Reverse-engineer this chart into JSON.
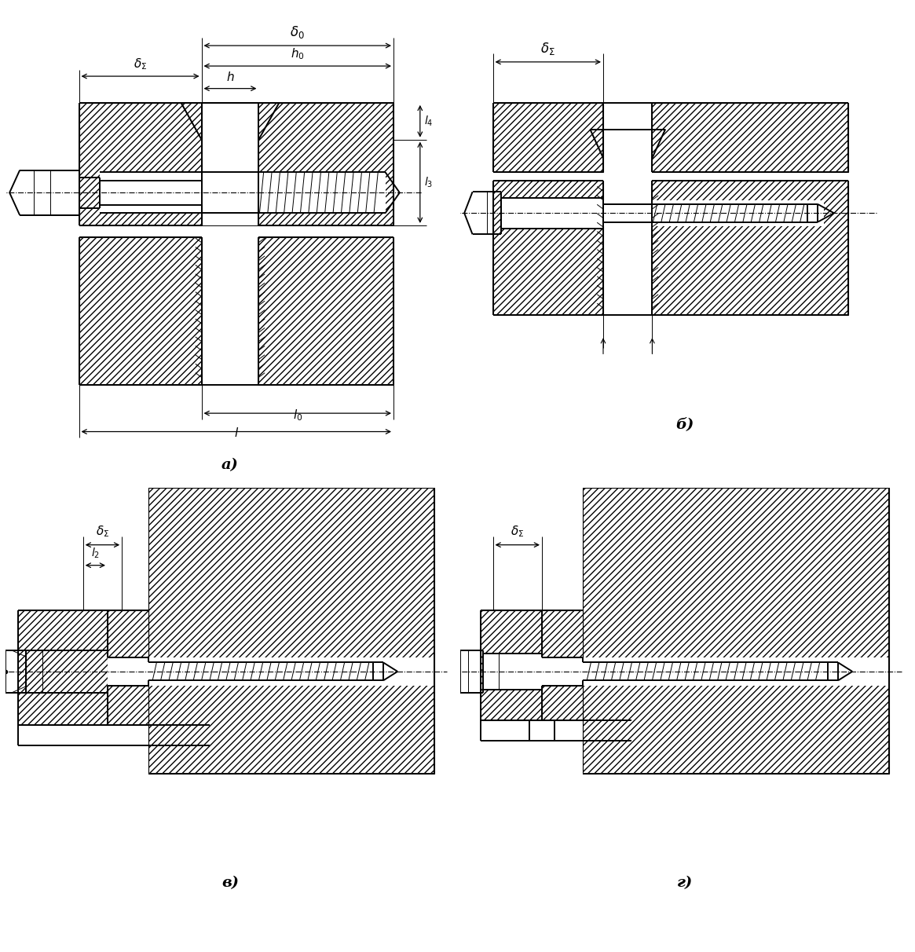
{
  "fig_w": 11.65,
  "fig_h": 12.12,
  "dpi": 100,
  "bg": "#ffffff",
  "lc": "#000000",
  "lw_main": 1.4,
  "lw_thin": 0.7,
  "lw_cl": 0.8,
  "hatch": "////",
  "labels": [
    "а)",
    "б)",
    "в)",
    "г)"
  ],
  "annotations_a": {
    "delta0": "δ₀",
    "h0": "h₀",
    "h": "h",
    "deltaE": "δΣ",
    "l4": "l₄",
    "l3": "l₃",
    "l0": "l₀",
    "l": "l"
  },
  "annotations_b": {
    "deltaE": "δΣ"
  },
  "annotations_v": {
    "deltaE": "δΣ",
    "l2": "l₂"
  },
  "annotations_g": {
    "deltaE": "δΣ"
  }
}
